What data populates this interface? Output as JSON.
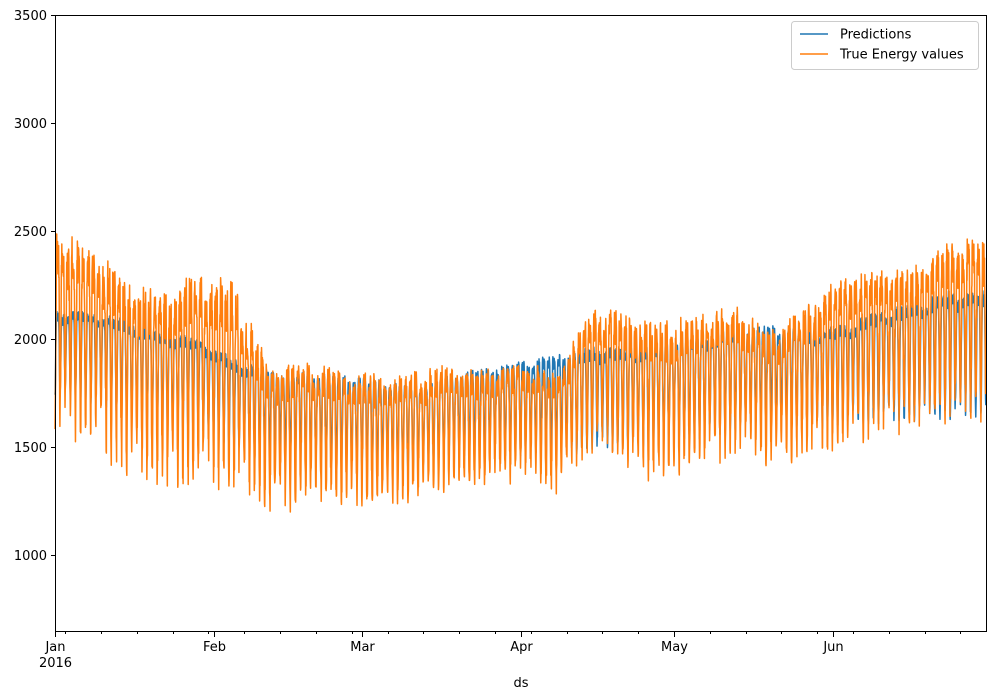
{
  "chart_data": {
    "type": "line",
    "title": "",
    "xlabel": "ds",
    "ylabel": "",
    "ylim": [
      650,
      3500
    ],
    "xlim": [
      "2016-01-01",
      "2016-06-30"
    ],
    "grid": false,
    "legend_position": "top-right",
    "y_ticks": [
      1000,
      1500,
      2000,
      2500,
      3000,
      3500
    ],
    "x_ticks": [
      {
        "date": "2016-01-01",
        "label": "Jan",
        "sublabel": "2016"
      },
      {
        "date": "2016-02-01",
        "label": "Feb",
        "sublabel": ""
      },
      {
        "date": "2016-03-01",
        "label": "Mar",
        "sublabel": ""
      },
      {
        "date": "2016-04-01",
        "label": "Apr",
        "sublabel": ""
      },
      {
        "date": "2016-05-01",
        "label": "May",
        "sublabel": ""
      },
      {
        "date": "2016-06-01",
        "label": "Jun",
        "sublabel": ""
      }
    ],
    "sampling": "hourly (approx.)",
    "series": [
      {
        "name": "Predictions",
        "color": "#1f77b4",
        "x_range": [
          "2016-01-01",
          "2016-06-30"
        ],
        "weekly_midline": [
          2000,
          1980,
          1930,
          1870,
          1850,
          1760,
          1720,
          1700,
          1680,
          1660,
          1640,
          1700,
          1720,
          1740,
          1760,
          1800,
          1800,
          1820,
          1850,
          1880,
          1900,
          1880,
          1900,
          1950,
          1980,
          2020
        ],
        "weekly_amplitude": [
          210,
          230,
          260,
          250,
          250,
          230,
          220,
          230,
          240,
          240,
          220,
          210,
          230,
          250,
          260,
          260,
          260,
          260,
          260,
          260,
          250,
          250,
          260,
          280,
          300,
          320
        ]
      },
      {
        "name": "True Energy values",
        "color": "#ff7f0e",
        "x_range": [
          "2016-01-01",
          "2016-06-30"
        ],
        "weekly_midline": [
          2150,
          2100,
          1950,
          1880,
          1950,
          1900,
          1620,
          1650,
          1620,
          1600,
          1620,
          1660,
          1650,
          1700,
          1640,
          1900,
          1850,
          1800,
          1850,
          1900,
          1800,
          1900,
          2000,
          2050,
          2050,
          2150
        ],
        "weekly_amplitude": [
          460,
          420,
          450,
          430,
          500,
          460,
          330,
          310,
          300,
          300,
          290,
          280,
          260,
          260,
          270,
          320,
          340,
          360,
          330,
          330,
          300,
          340,
          390,
          360,
          360,
          400
        ]
      }
    ]
  }
}
